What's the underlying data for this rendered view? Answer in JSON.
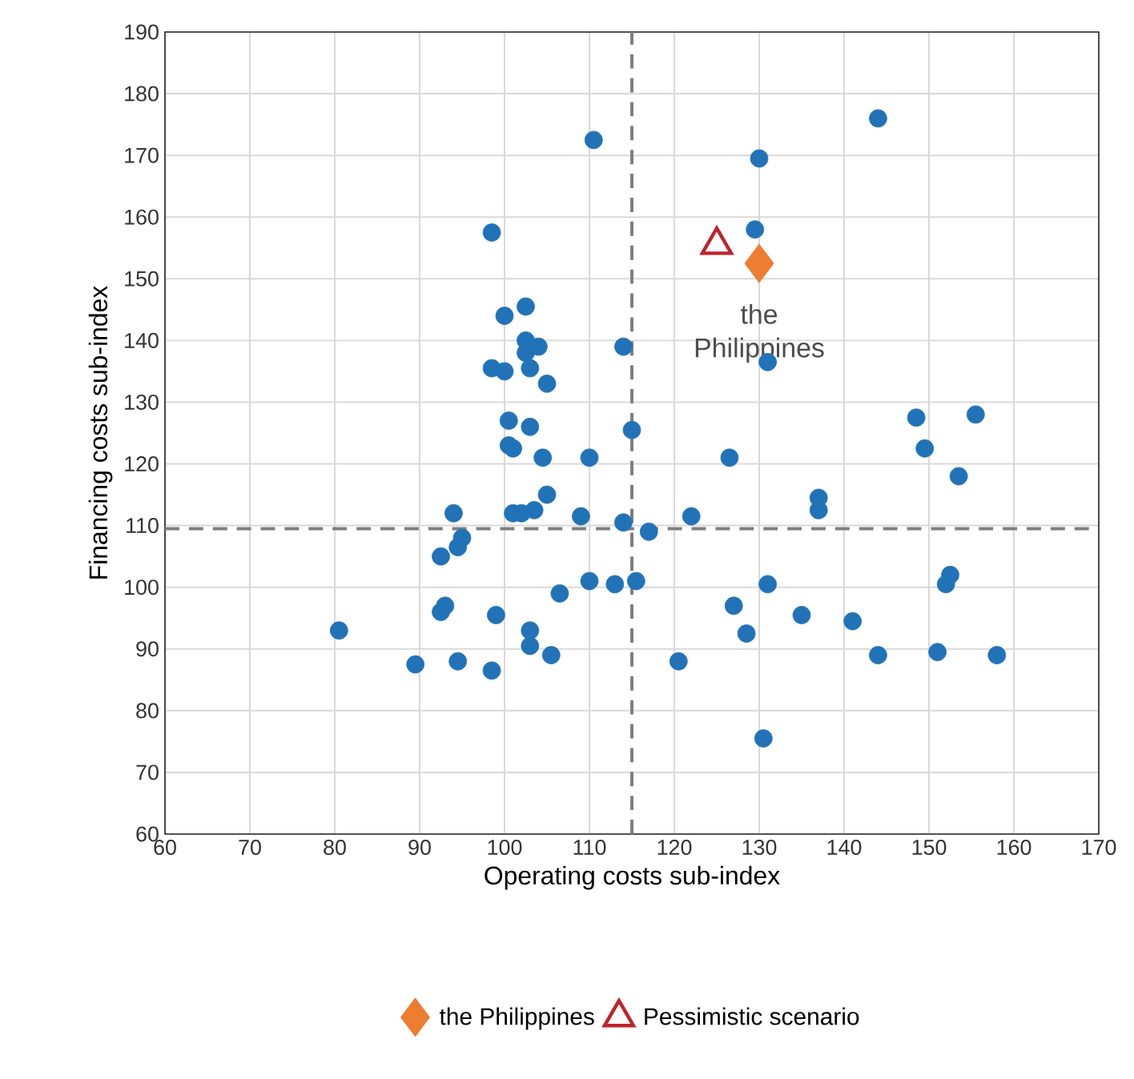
{
  "chart_data": {
    "type": "scatter",
    "xlabel": "Operating costs sub-index",
    "ylabel": "Financing costs sub-index",
    "xlim": [
      60,
      170
    ],
    "ylim": [
      60,
      190
    ],
    "xticks": [
      60,
      70,
      80,
      90,
      100,
      110,
      120,
      130,
      140,
      150,
      160,
      170
    ],
    "yticks": [
      60,
      70,
      80,
      90,
      100,
      110,
      120,
      130,
      140,
      150,
      160,
      170,
      180,
      190
    ],
    "grid": true,
    "legend": "bottom",
    "series": [
      {
        "color": "#2272b8",
        "marker": "circle",
        "x": [
          80.5,
          89.5,
          92.5,
          92.5,
          93,
          94,
          94.5,
          94.5,
          95,
          98.5,
          98.5,
          98.5,
          99,
          100,
          100,
          100.5,
          100.5,
          101,
          101,
          102,
          102.5,
          102.5,
          102.5,
          103,
          103,
          103,
          103,
          103.5,
          104,
          104.5,
          105,
          105,
          105.5,
          106.5,
          109,
          110,
          110,
          110.5,
          113,
          114,
          114,
          115,
          115.5,
          117,
          120.5,
          122,
          126.5,
          127,
          128.5,
          129.5,
          130,
          130.5,
          131,
          131,
          135,
          137,
          137,
          141,
          144,
          144,
          148.5,
          149.5,
          151,
          152,
          152.5,
          153.5,
          155.5,
          158
        ],
        "values": [
          93,
          87.5,
          105,
          96,
          97,
          112,
          88,
          106.5,
          108,
          157.5,
          135.5,
          86.5,
          95.5,
          144,
          135,
          127,
          123,
          112,
          122.5,
          112,
          145.5,
          140,
          138,
          135.5,
          126,
          93,
          90.5,
          112.5,
          139,
          121,
          115,
          133,
          89,
          99,
          111.5,
          121,
          101,
          172.5,
          100.5,
          110.5,
          139,
          125.5,
          101,
          109,
          88,
          111.5,
          121,
          97,
          92.5,
          158,
          169.5,
          75.5,
          136.5,
          100.5,
          95.5,
          112.5,
          114.5,
          94.5,
          176,
          89,
          127.5,
          122.5,
          89.5,
          100.5,
          102,
          118,
          128,
          89
        ]
      },
      {
        "name": "the Philippines",
        "color": "#ed7d31",
        "marker": "diamond",
        "x": [
          130
        ],
        "values": [
          152.5
        ]
      },
      {
        "name": "Pessimistic scenario",
        "color": "#c0232b",
        "marker": "triangle",
        "x": [
          125
        ],
        "values": [
          155.5
        ]
      }
    ],
    "ref_lines": [
      {
        "axis": "x",
        "value": 115,
        "color": "#7f7f7f",
        "line_style": "dashed"
      },
      {
        "axis": "y",
        "value": 109.5,
        "color": "#7f7f7f",
        "line_style": "dashed"
      }
    ],
    "annotations": [
      {
        "text": "the Philippines",
        "x": 130,
        "y": 152.5
      }
    ]
  }
}
